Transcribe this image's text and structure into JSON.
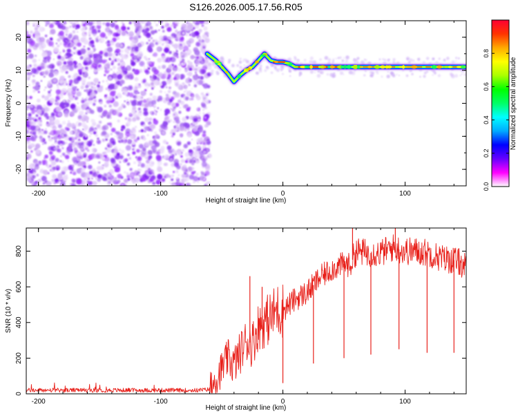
{
  "title": "S126.2026.005.17.56.R05",
  "colors": {
    "snr_line": "#e8201a",
    "spec_noise": "#8a2be2",
    "axis": "#000000"
  },
  "chart_data": [
    {
      "type": "heatmap",
      "title": "S126.2026.005.17.56.R05",
      "xlabel": "Height of straight line (km)",
      "ylabel": "Frequency (Hz)",
      "xlim": [
        -210,
        150
      ],
      "ylim": [
        -25,
        25
      ],
      "xticks": [
        -200,
        -100,
        0,
        100
      ],
      "yticks": [
        -20,
        -10,
        0,
        10,
        20
      ],
      "noise_region": {
        "x": [
          -210,
          -60
        ],
        "y": [
          -25,
          25
        ]
      },
      "signal_trace": {
        "x": [
          -62,
          -55,
          -50,
          -45,
          -40,
          -35,
          -30,
          -25,
          -20,
          -15,
          -10,
          -5,
          0,
          5,
          10,
          20,
          40,
          60,
          80,
          100,
          120,
          140,
          150
        ],
        "y": [
          15,
          13,
          11,
          9,
          6.5,
          8.5,
          10,
          11,
          13,
          15,
          13,
          12.5,
          12.5,
          12,
          11,
          11,
          11,
          11,
          11,
          11,
          11,
          11,
          11
        ]
      },
      "colorbar": {
        "label": "Normalized spectral amplitude",
        "range": [
          0,
          1
        ],
        "ticks": [
          0.0,
          0.2,
          0.4,
          0.6,
          0.8
        ],
        "tick_labels": [
          "0.0",
          "0.2",
          "0.4",
          "0.6",
          "0.8"
        ],
        "colors": [
          "#ffffff",
          "#ff00ff",
          "#6600ff",
          "#0000ff",
          "#00aaff",
          "#00ffff",
          "#00ff66",
          "#00ff00",
          "#aaff00",
          "#ffff00",
          "#ffaa00",
          "#ff3300",
          "#ff0033"
        ]
      },
      "grid": false
    },
    {
      "type": "line",
      "xlabel": "Height of straight line (km)",
      "ylabel": "SNR (10 * v/v)",
      "xlim": [
        -210,
        150
      ],
      "ylim": [
        0,
        930
      ],
      "xticks": [
        -200,
        -100,
        0,
        100
      ],
      "yticks": [
        0,
        200,
        400,
        600,
        800
      ],
      "series": [
        {
          "x": [
            -210,
            -190,
            -170,
            -150,
            -130,
            -110,
            -90,
            -70,
            -60,
            -50,
            -45,
            -40,
            -35,
            -30,
            -25,
            -20,
            -15,
            -10,
            -5,
            0,
            10,
            20,
            30,
            40,
            50,
            55,
            60,
            70,
            80,
            90,
            100,
            110,
            120,
            130,
            140,
            150
          ],
          "values": [
            20,
            20,
            20,
            20,
            20,
            20,
            20,
            20,
            25,
            140,
            200,
            160,
            230,
            300,
            280,
            380,
            400,
            430,
            470,
            470,
            530,
            570,
            650,
            700,
            730,
            720,
            800,
            790,
            790,
            820,
            800,
            800,
            790,
            760,
            750,
            720
          ]
        }
      ],
      "dips": [
        {
          "x": 0,
          "y": 60
        },
        {
          "x": 25,
          "y": 170
        },
        {
          "x": 50,
          "y": 200
        },
        {
          "x": 72,
          "y": 220
        },
        {
          "x": 95,
          "y": 250
        },
        {
          "x": 118,
          "y": 230
        },
        {
          "x": 140,
          "y": 230
        }
      ],
      "spikes": [
        {
          "x": -27,
          "y": 660
        },
        {
          "x": -17,
          "y": 600
        },
        {
          "x": 57,
          "y": 930
        },
        {
          "x": 92,
          "y": 930
        }
      ],
      "grid": false
    }
  ]
}
